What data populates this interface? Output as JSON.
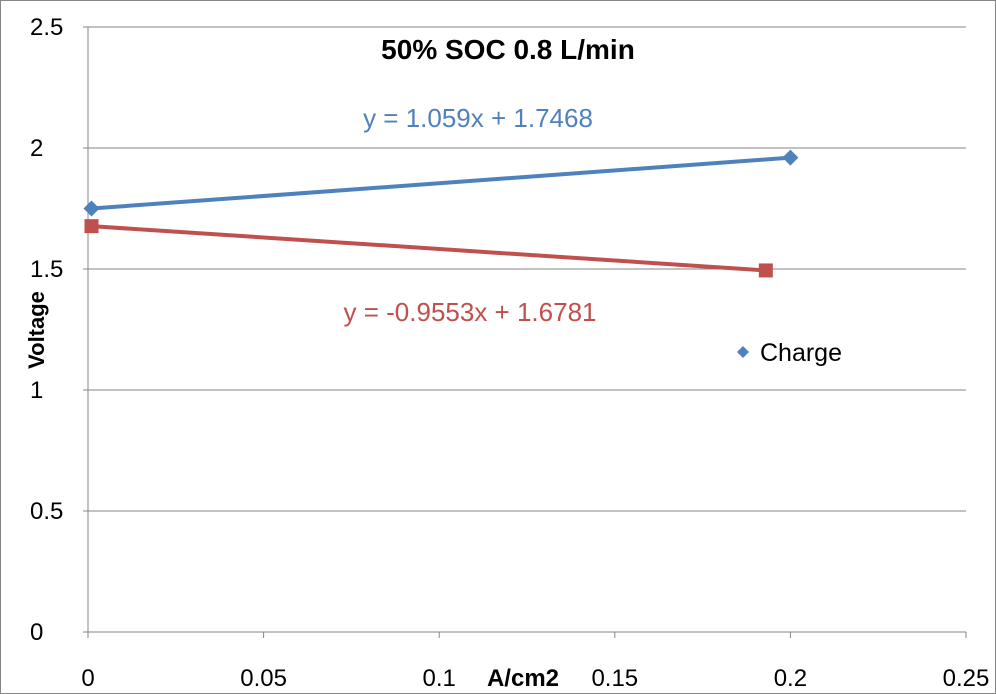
{
  "chart_data": {
    "type": "scatter",
    "title": "50% SOC 0.8 L/min",
    "xlabel": "A/cm2",
    "ylabel": "Voltage",
    "xlim": [
      0,
      0.25
    ],
    "ylim": [
      0,
      2.5
    ],
    "x_ticks": [
      "0",
      "0.05",
      "0.1",
      "0.15",
      "0.2",
      "0.25"
    ],
    "y_ticks": [
      "0",
      "0.5",
      "1",
      "1.5",
      "2",
      "2.5"
    ],
    "grid": "horizontal",
    "legend_position": "right",
    "series": [
      {
        "name": "Charge",
        "marker": "diamond",
        "color": "#4F81BD",
        "x": [
          0.001,
          0.2
        ],
        "y": [
          1.75,
          1.96
        ],
        "trendline": {
          "slope": 1.059,
          "intercept": 1.7468,
          "label": "y = 1.059x + 1.7468"
        }
      },
      {
        "marker": "square",
        "color": "#C0504D",
        "x": [
          0.001,
          0.193
        ],
        "y": [
          1.677,
          1.494
        ],
        "trendline": {
          "slope": -0.9553,
          "intercept": 1.6781,
          "label": "y = -0.9553x + 1.6781"
        }
      }
    ],
    "legend": [
      {
        "label": "Charge",
        "marker": "diamond",
        "color": "#4F81BD"
      }
    ]
  }
}
